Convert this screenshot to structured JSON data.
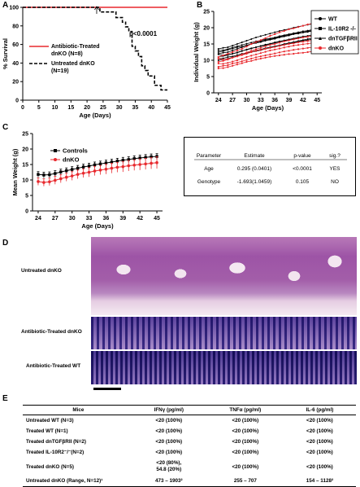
{
  "panels": {
    "a": "A",
    "b": "B",
    "c": "C",
    "d": "D",
    "e": "E"
  },
  "colors": {
    "red": "#e8292e",
    "black": "#000000"
  },
  "chart_data": [
    {
      "type": "line",
      "xlabel": "Age (Days)",
      "ylabel": "% Survival",
      "xlim": [
        0,
        45
      ],
      "ylim": [
        0,
        100
      ],
      "xticks": [
        "0",
        "5",
        "10",
        "15",
        "20",
        "25",
        "30",
        "35",
        "40",
        "45"
      ],
      "yticks": [
        "0",
        "20",
        "40",
        "60",
        "80",
        "100"
      ],
      "pvalue": "p<0.0001",
      "series": [
        {
          "name": "Antibiotic-Treated dnKO (N=8)",
          "legend_lines": [
            "Antibiotic-Treated",
            "dnKO (N=8)"
          ],
          "x": [
            0,
            45
          ],
          "y": [
            100,
            100
          ]
        },
        {
          "name": "Untreated dnKO (N=19)",
          "legend_lines": [
            "Untreated dnKO",
            "(N=19)"
          ],
          "x": [
            0,
            22,
            24,
            24,
            29,
            29,
            31,
            31,
            32,
            32,
            33,
            33,
            34,
            34,
            35,
            35,
            36,
            36,
            37,
            37,
            38,
            38,
            39,
            39,
            41,
            41,
            43,
            43,
            45
          ],
          "y": [
            100,
            100,
            100,
            95,
            95,
            89,
            89,
            84,
            84,
            79,
            79,
            74,
            74,
            58,
            58,
            53,
            53,
            47,
            47,
            37,
            37,
            32,
            32,
            26,
            26,
            16,
            16,
            11,
            11
          ]
        }
      ]
    },
    {
      "type": "line",
      "xlabel": "Age (Days)",
      "ylabel": "Individual Weight (g)",
      "xlim": [
        23,
        46
      ],
      "ylim": [
        0,
        25
      ],
      "xticks": [
        "24",
        "27",
        "30",
        "33",
        "36",
        "39",
        "42",
        "45"
      ],
      "yticks": [
        "0",
        "5",
        "10",
        "15",
        "20",
        "25"
      ],
      "legend": [
        "WT",
        "IL-10R2 -/-",
        "dnTGFβRII",
        "dnKO"
      ],
      "x": [
        24,
        25,
        26,
        27,
        28,
        29,
        30,
        31,
        32,
        33,
        34,
        35,
        36,
        37,
        38,
        39,
        40,
        41,
        42,
        43,
        44,
        45
      ],
      "black_lines": [
        [
          13.5,
          13.8,
          14,
          14.5,
          15,
          15.5,
          16,
          16.5,
          17,
          17.4,
          17.8,
          18.2,
          18.6,
          19,
          19.3,
          19.6,
          20,
          20.3,
          20.6,
          20.9,
          21.2,
          21.5
        ],
        [
          12,
          12.3,
          12.5,
          13,
          13.5,
          14,
          14.5,
          15,
          15.3,
          15.6,
          16,
          16.3,
          16.6,
          17,
          17.3,
          17.6,
          18,
          18.2,
          18.5,
          18.7,
          19,
          19.2
        ],
        [
          11,
          11.3,
          11.6,
          12,
          12.3,
          12.8,
          13.3,
          13.7,
          14,
          14.4,
          14.8,
          15.1,
          15.5,
          15.8,
          16.1,
          16.4,
          16.7,
          17,
          17.3,
          17.5,
          17.8,
          18
        ],
        [
          10.5,
          10.6,
          11,
          11.2,
          11.6,
          12,
          12.2,
          12.6,
          13,
          13.3,
          13.7,
          14,
          14.3,
          14.6,
          15,
          15.3,
          15.6,
          15.9,
          16.2,
          16.5,
          16.8,
          17
        ],
        [
          12.5,
          12.8,
          13.2,
          13.6,
          14,
          14.2,
          14.6,
          15,
          15.5,
          15.8,
          16.2,
          16.5,
          16.8,
          17.2,
          17.5,
          17.8,
          18.1,
          18.4,
          18.6,
          18.9,
          19.1,
          19.4
        ],
        [
          11.8,
          11.5,
          11.7,
          12,
          12.4,
          12.9,
          13.2,
          13.6,
          14,
          14.3,
          14.6,
          15,
          15.3,
          15.7,
          16,
          16.2,
          16.5,
          16.8,
          17,
          17.2,
          17.4,
          17.6
        ],
        [
          10,
          10.2,
          10.5,
          10.9,
          11.3,
          11.7,
          12.1,
          12.5,
          12.8,
          13.1,
          13.5,
          13.8,
          14.2,
          14.5,
          14.8,
          15.1,
          15.4,
          15.7,
          16,
          16.2,
          16.5,
          16.7
        ],
        [
          13,
          13.1,
          13.4,
          13.9,
          14.3,
          14.7,
          15.1,
          15.4,
          15.8,
          16.1,
          16.5,
          16.7,
          17,
          17.4,
          17.7,
          18,
          18.3,
          18.6,
          18.9,
          19.1,
          19.4,
          19.6
        ]
      ],
      "red_lines": [
        [
          11,
          11.5,
          12,
          12.5,
          13,
          13.5,
          14.2,
          15,
          15.6,
          16.2,
          16.8,
          17.5,
          18,
          18.6,
          19,
          19.5,
          19.8,
          20.2,
          20.6,
          21,
          21.3,
          21.6
        ],
        [
          9.5,
          9.8,
          10.2,
          10.8,
          11.2,
          11.8,
          12.4,
          12.9,
          13.4,
          13.8,
          14.3,
          14.7,
          15,
          15.4,
          15.8,
          16.1,
          16.4,
          16.7,
          17,
          17.2,
          17.5,
          17.8
        ],
        [
          9,
          8.9,
          9.2,
          9.6,
          10,
          10.5,
          11,
          11.4,
          11.8,
          12.2,
          12.6,
          13,
          13.3,
          13.6,
          13.9,
          14.2,
          14.5,
          14.7,
          14.9,
          15.1,
          15.3,
          15.5
        ],
        [
          8,
          8.3,
          8.5,
          9,
          9.3,
          9.7,
          10.1,
          10.5,
          10.9,
          11.2,
          11.5,
          11.8,
          12.1,
          12.4,
          12.7,
          12.9,
          13.2,
          13.4,
          13.6,
          13.8,
          14,
          14.2
        ],
        [
          7.5,
          7.6,
          7.9,
          8.3,
          8.7,
          9.1,
          9.5,
          9.8,
          10.2,
          10.5,
          10.8,
          11.1,
          11.3,
          11.5,
          11.7,
          11.9,
          12,
          12.2,
          12.3,
          12.5,
          12.7,
          12.9
        ],
        [
          10.5,
          10.2,
          10.4,
          10.8,
          11.2,
          11.6,
          12,
          12.5,
          12.9,
          13.2,
          13.5,
          13.8,
          14.1,
          14.4,
          14.7,
          15,
          15.2,
          15.5,
          15.7,
          15.9,
          16.1,
          16.3
        ]
      ]
    },
    {
      "type": "line",
      "xlabel": "Age (Days)",
      "ylabel": "Mean Weight (g)",
      "xlim": [
        23,
        46
      ],
      "ylim": [
        0,
        25
      ],
      "xticks": [
        "24",
        "27",
        "30",
        "33",
        "36",
        "39",
        "42",
        "45"
      ],
      "yticks": [
        "0",
        "5",
        "10",
        "15",
        "20",
        "25"
      ],
      "x": [
        24,
        25,
        26,
        27,
        28,
        29,
        30,
        31,
        32,
        33,
        34,
        35,
        36,
        37,
        38,
        39,
        40,
        41,
        42,
        43,
        44,
        45
      ],
      "series": [
        {
          "name": "Controls",
          "values": [
            11.8,
            11.6,
            11.7,
            12.1,
            12.6,
            13,
            13.4,
            13.8,
            14.2,
            14.5,
            14.9,
            15.2,
            15.5,
            15.8,
            16.1,
            16.4,
            16.6,
            16.9,
            17.1,
            17.3,
            17.5,
            17.6
          ],
          "err": [
            0.9,
            0.9,
            0.9,
            0.9,
            0.9,
            0.9,
            0.9,
            0.9,
            0.9,
            0.9,
            0.9,
            0.9,
            0.9,
            0.9,
            0.9,
            0.9,
            0.9,
            0.9,
            0.9,
            0.9,
            0.9,
            0.9
          ]
        },
        {
          "name": "dnKO",
          "values": [
            9.5,
            9.2,
            9.4,
            9.9,
            10.4,
            10.9,
            11.3,
            11.8,
            12.2,
            12.5,
            12.9,
            13.2,
            13.5,
            13.8,
            14.1,
            14.3,
            14.6,
            14.8,
            15,
            15.2,
            15.4,
            15.6
          ],
          "err": [
            1.2,
            1.2,
            1.2,
            1.3,
            1.3,
            1.3,
            1.4,
            1.4,
            1.4,
            1.5,
            1.5,
            1.5,
            1.6,
            1.6,
            1.6,
            1.7,
            1.7,
            1.7,
            1.8,
            1.8,
            1.8,
            1.9
          ]
        }
      ]
    }
  ],
  "stats_table": {
    "headers": [
      "Parameter",
      "Estimate",
      "p-value",
      "sig.?"
    ],
    "rows": [
      [
        "Age",
        "0.295 (0.0401)",
        "<0.0001",
        "YES"
      ],
      [
        "Genotype",
        "-1.693(1.0459)",
        "0.105",
        "NO"
      ]
    ]
  },
  "histology": {
    "labels": [
      "Untreated dnKO",
      "Antibiotic-Treated dnKO",
      "Antibiotic-Treated WT"
    ]
  },
  "cytokine_table": {
    "headers": [
      "Mice",
      "IFNγ (pg/ml)",
      "TNFα (pg/ml)",
      "IL-6 (pg/ml)"
    ],
    "rows": [
      [
        "Untreated WT (N=3)",
        "<20 (100%)",
        "<20 (100%)",
        "<20 (100%)"
      ],
      [
        "Treated WT (N=1)",
        "<20 (100%)",
        "<20 (100%)",
        "<20 (100%)"
      ],
      [
        "Treated dnTGFβRII (N=2)",
        "<20 (100%)",
        "<20 (100%)",
        "<20 (100%)"
      ],
      [
        "Treated IL-10R2⁻/⁻(N=2)",
        "<20 (100%)",
        "<20 (100%)",
        "<20 (100%)"
      ],
      [
        "Treated dnKO (N=5)",
        "<20 (80%),\n54.8 (20%)",
        "<20 (100%)",
        "<20 (100%)"
      ],
      [
        "Untreated dnKO (Range, N=12)¹",
        "473 – 1903²",
        "255 – 707",
        "154 – 1128²"
      ]
    ]
  }
}
